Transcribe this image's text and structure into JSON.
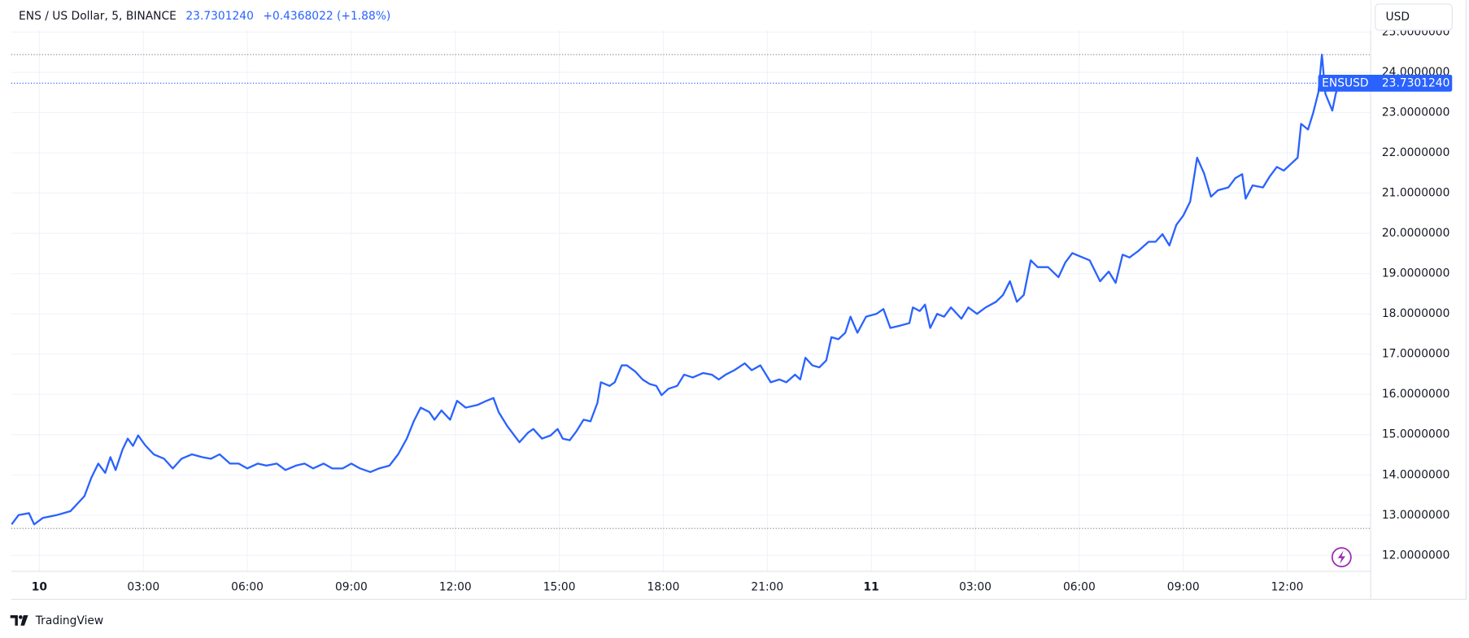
{
  "chart_data": {
    "type": "line",
    "title": "ENS / US Dollar, 5, BINANCE",
    "header_price": "23.7301240",
    "header_change": "+0.4368022 (+1.88%)",
    "currency": "USD",
    "brand": "TradingView",
    "last": {
      "value": 23.730124,
      "label": "23.7301240"
    },
    "hlines": [
      24.44,
      12.67
    ],
    "grid": true,
    "xlim": [
      -0.8,
      38.4
    ],
    "ylim": [
      11.6,
      25
    ],
    "xticks": [
      {
        "value": 0,
        "label": "10"
      },
      {
        "value": 3,
        "label": "03:00"
      },
      {
        "value": 6,
        "label": "06:00"
      },
      {
        "value": 9,
        "label": "09:00"
      },
      {
        "value": 12,
        "label": "12:00"
      },
      {
        "value": 15,
        "label": "15:00"
      },
      {
        "value": 18,
        "label": "18:00"
      },
      {
        "value": 21,
        "label": "21:00"
      },
      {
        "value": 24,
        "label": "11"
      },
      {
        "value": 27,
        "label": "03:00"
      },
      {
        "value": 30,
        "label": "06:00"
      },
      {
        "value": 33,
        "label": "09:00"
      },
      {
        "value": 36,
        "label": "12:00"
      }
    ],
    "yticks": [
      {
        "value": 12,
        "label": "12.0000000"
      },
      {
        "value": 13,
        "label": "13.0000000"
      },
      {
        "value": 14,
        "label": "14.0000000"
      },
      {
        "value": 15,
        "label": "15.0000000"
      },
      {
        "value": 16,
        "label": "16.0000000"
      },
      {
        "value": 17,
        "label": "17.0000000"
      },
      {
        "value": 18,
        "label": "18.0000000"
      },
      {
        "value": 19,
        "label": "19.0000000"
      },
      {
        "value": 20,
        "label": "20.0000000"
      },
      {
        "value": 21,
        "label": "21.0000000"
      },
      {
        "value": 22,
        "label": "22.0000000"
      },
      {
        "value": 23,
        "label": "23.0000000"
      },
      {
        "value": 24,
        "label": "24.0000000"
      },
      {
        "value": 25,
        "label": "25.0000000"
      }
    ],
    "x": [
      -0.8,
      -0.6,
      -0.3,
      -0.15,
      0.1,
      0.5,
      0.9,
      1.3,
      1.5,
      1.7,
      1.9,
      2.05,
      2.2,
      2.4,
      2.55,
      2.7,
      2.85,
      3.05,
      3.3,
      3.6,
      3.85,
      4.1,
      4.4,
      4.7,
      4.95,
      5.2,
      5.5,
      5.75,
      6.0,
      6.3,
      6.55,
      6.85,
      7.1,
      7.4,
      7.65,
      7.9,
      8.2,
      8.45,
      8.75,
      9.0,
      9.25,
      9.55,
      9.8,
      10.1,
      10.35,
      10.6,
      10.8,
      11.0,
      11.25,
      11.4,
      11.6,
      11.85,
      12.05,
      12.3,
      12.65,
      12.9,
      13.1,
      13.25,
      13.5,
      13.7,
      13.85,
      14.1,
      14.25,
      14.5,
      14.75,
      14.95,
      15.1,
      15.3,
      15.5,
      15.7,
      15.9,
      16.1,
      16.2,
      16.45,
      16.6,
      16.8,
      16.95,
      17.2,
      17.4,
      17.6,
      17.8,
      17.95,
      18.15,
      18.4,
      18.6,
      18.85,
      19.15,
      19.4,
      19.6,
      19.8,
      20.05,
      20.35,
      20.55,
      20.8,
      21.1,
      21.35,
      21.55,
      21.8,
      21.95,
      22.1,
      22.3,
      22.5,
      22.7,
      22.85,
      23.05,
      23.25,
      23.4,
      23.6,
      23.85,
      24.15,
      24.35,
      24.55,
      24.8,
      25.1,
      25.2,
      25.4,
      25.55,
      25.7,
      25.9,
      26.1,
      26.3,
      26.6,
      26.8,
      27.05,
      27.3,
      27.6,
      27.8,
      28.0,
      28.2,
      28.4,
      28.6,
      28.8,
      29.1,
      29.4,
      29.6,
      29.8,
      30.1,
      30.3,
      30.6,
      30.85,
      31.05,
      31.25,
      31.45,
      31.7,
      32.0,
      32.2,
      32.4,
      32.6,
      32.8,
      33.0,
      33.2,
      33.4,
      33.6,
      33.8,
      34.0,
      34.3,
      34.5,
      34.7,
      34.8,
      35.0,
      35.3,
      35.5,
      35.7,
      35.9,
      36.1,
      36.3,
      36.4,
      36.6,
      36.75,
      36.9,
      37.0,
      37.1,
      37.3,
      37.4,
      37.5
    ],
    "series": [
      {
        "name": "ENSUSD",
        "color": "#2962ff",
        "values": [
          12.77,
          13.0,
          13.05,
          12.77,
          12.93,
          13.0,
          13.1,
          13.47,
          13.93,
          14.28,
          14.05,
          14.44,
          14.12,
          14.63,
          14.9,
          14.72,
          14.98,
          14.74,
          14.51,
          14.4,
          14.16,
          14.4,
          14.51,
          14.44,
          14.4,
          14.51,
          14.28,
          14.28,
          14.16,
          14.28,
          14.23,
          14.28,
          14.12,
          14.23,
          14.28,
          14.16,
          14.28,
          14.16,
          14.16,
          14.28,
          14.16,
          14.07,
          14.16,
          14.23,
          14.51,
          14.9,
          15.33,
          15.67,
          15.56,
          15.37,
          15.6,
          15.37,
          15.84,
          15.67,
          15.74,
          15.84,
          15.91,
          15.56,
          15.21,
          14.98,
          14.81,
          15.05,
          15.14,
          14.9,
          14.98,
          15.14,
          14.9,
          14.86,
          15.09,
          15.37,
          15.33,
          15.79,
          16.3,
          16.21,
          16.3,
          16.72,
          16.72,
          16.56,
          16.37,
          16.26,
          16.21,
          15.98,
          16.14,
          16.21,
          16.49,
          16.42,
          16.53,
          16.49,
          16.37,
          16.49,
          16.6,
          16.77,
          16.6,
          16.72,
          16.3,
          16.37,
          16.3,
          16.49,
          16.37,
          16.91,
          16.72,
          16.67,
          16.84,
          17.42,
          17.37,
          17.53,
          17.93,
          17.53,
          17.93,
          18.0,
          18.12,
          17.65,
          17.7,
          17.77,
          18.16,
          18.07,
          18.23,
          17.65,
          18.0,
          17.93,
          18.16,
          17.88,
          18.16,
          18.0,
          18.16,
          18.3,
          18.47,
          18.81,
          18.3,
          18.47,
          19.33,
          19.16,
          19.16,
          18.91,
          19.28,
          19.51,
          19.4,
          19.33,
          18.81,
          19.05,
          18.77,
          19.47,
          19.4,
          19.56,
          19.79,
          19.79,
          19.98,
          19.7,
          20.21,
          20.44,
          20.79,
          21.88,
          21.49,
          20.91,
          21.07,
          21.14,
          21.37,
          21.47,
          20.86,
          21.19,
          21.14,
          21.42,
          21.65,
          21.56,
          21.72,
          21.88,
          22.72,
          22.58,
          23.0,
          23.51,
          24.44,
          23.47,
          23.05,
          23.47,
          23.73
        ]
      }
    ]
  }
}
